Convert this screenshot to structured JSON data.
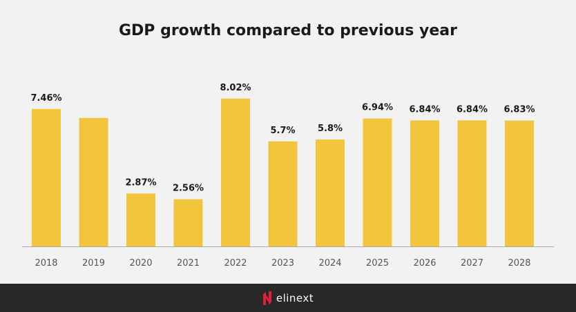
{
  "chart_data": {
    "type": "bar",
    "title": "GDP growth compared to previous year",
    "xlabel": "",
    "ylabel": "",
    "categories": [
      "2018",
      "2019",
      "2020",
      "2021",
      "2022",
      "2023",
      "2024",
      "2025",
      "2026",
      "2027",
      "2028"
    ],
    "values": [
      7.46,
      6.97,
      2.87,
      2.56,
      8.02,
      5.7,
      5.8,
      6.94,
      6.84,
      6.84,
      6.83
    ],
    "data_labels": [
      "7.46%",
      "",
      "2.87%",
      "2.56%",
      "8.02%",
      "5.7%",
      "5.8%",
      "6.94%",
      "6.84%",
      "6.84%",
      "6.83%"
    ],
    "ylim": [
      0,
      9
    ],
    "grid": false,
    "bar_color": "#f2c53d"
  },
  "footer": {
    "brand": "elinext",
    "brand_color": "#e0203a"
  }
}
